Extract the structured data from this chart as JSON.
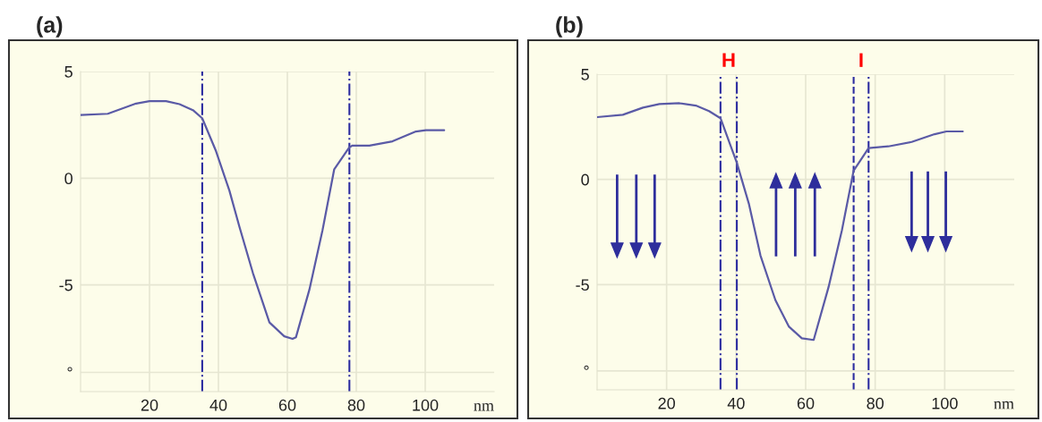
{
  "chart_data": [
    {
      "type": "line",
      "title": "(a)",
      "xlabel": "nm",
      "xlim": [
        0,
        120
      ],
      "xticks": [
        20,
        40,
        60,
        80,
        100
      ],
      "ylim": [
        -10,
        5
      ],
      "yticks": [
        5,
        0,
        -5,
        {
          "value": -9.1,
          "label": "°"
        }
      ],
      "grid": true,
      "marker": "none",
      "line_style": "solid",
      "series": [
        {
          "color": "#5a5aa6",
          "x": [
            0,
            7.9,
            16.1,
            20,
            24.8,
            28.7,
            32.6,
            35.3,
            39.3,
            43.2,
            46.1,
            50,
            54.8,
            59.1,
            61.5,
            62.5,
            66.4,
            70.2,
            73.6,
            78,
            78.9,
            83.8,
            90.5,
            97.3,
            100.2,
            105.5
          ],
          "values": [
            2.96,
            3.02,
            3.5,
            3.61,
            3.61,
            3.47,
            3.19,
            2.81,
            1.27,
            -0.59,
            -2.28,
            -4.44,
            -6.76,
            -7.41,
            -7.53,
            -7.45,
            -5.22,
            -2.44,
            0.42,
            1.45,
            1.53,
            1.53,
            1.73,
            2.19,
            2.25,
            2.25
          ]
        }
      ],
      "ref_lines": [
        {
          "axis": "x",
          "value": 35.3,
          "color": "#2b2ba0",
          "line_style": "dashdot"
        },
        {
          "axis": "x",
          "value": 78,
          "color": "#2b2ba0",
          "line_style": "dashdot"
        }
      ]
    },
    {
      "type": "line",
      "title": "(b)",
      "xlabel": "nm",
      "xlim": [
        0,
        120
      ],
      "xticks": [
        20,
        40,
        60,
        80,
        100
      ],
      "ylim": [
        -10,
        5
      ],
      "yticks": [
        5,
        0,
        -5,
        {
          "value": -9.1,
          "label": "°"
        }
      ],
      "grid": true,
      "marker": "none",
      "line_style": "solid",
      "series": [
        {
          "color": "#5a5aa6",
          "x": [
            0,
            7.4,
            13.2,
            17.9,
            23.7,
            28.4,
            32.2,
            35.5,
            40.2,
            43.7,
            47,
            51.3,
            55.2,
            58.9,
            62.3,
            66.6,
            70.4,
            73.8,
            78.1,
            83.8,
            90.5,
            97.1,
            100.5,
            105.2
          ],
          "values": [
            2.96,
            3.07,
            3.41,
            3.58,
            3.62,
            3.51,
            3.25,
            2.91,
            0.79,
            -1.18,
            -3.62,
            -5.74,
            -7.0,
            -7.55,
            -7.63,
            -5.11,
            -2.44,
            0.42,
            1.49,
            1.57,
            1.78,
            2.15,
            2.28,
            2.28
          ]
        }
      ],
      "ref_lines": [
        {
          "axis": "x",
          "value": 35.5,
          "color": "#2b2ba0",
          "line_style": "dashdot"
        },
        {
          "axis": "x",
          "value": 40.2,
          "color": "#2b2ba0",
          "line_style": "dashdot",
          "label": "H"
        },
        {
          "axis": "x",
          "value": 73.8,
          "color": "#2b2ba0",
          "line_style": "dashed"
        },
        {
          "axis": "x",
          "value": 78.1,
          "color": "#2b2ba0",
          "line_style": "dashdot",
          "label": "I"
        }
      ]
    }
  ]
}
